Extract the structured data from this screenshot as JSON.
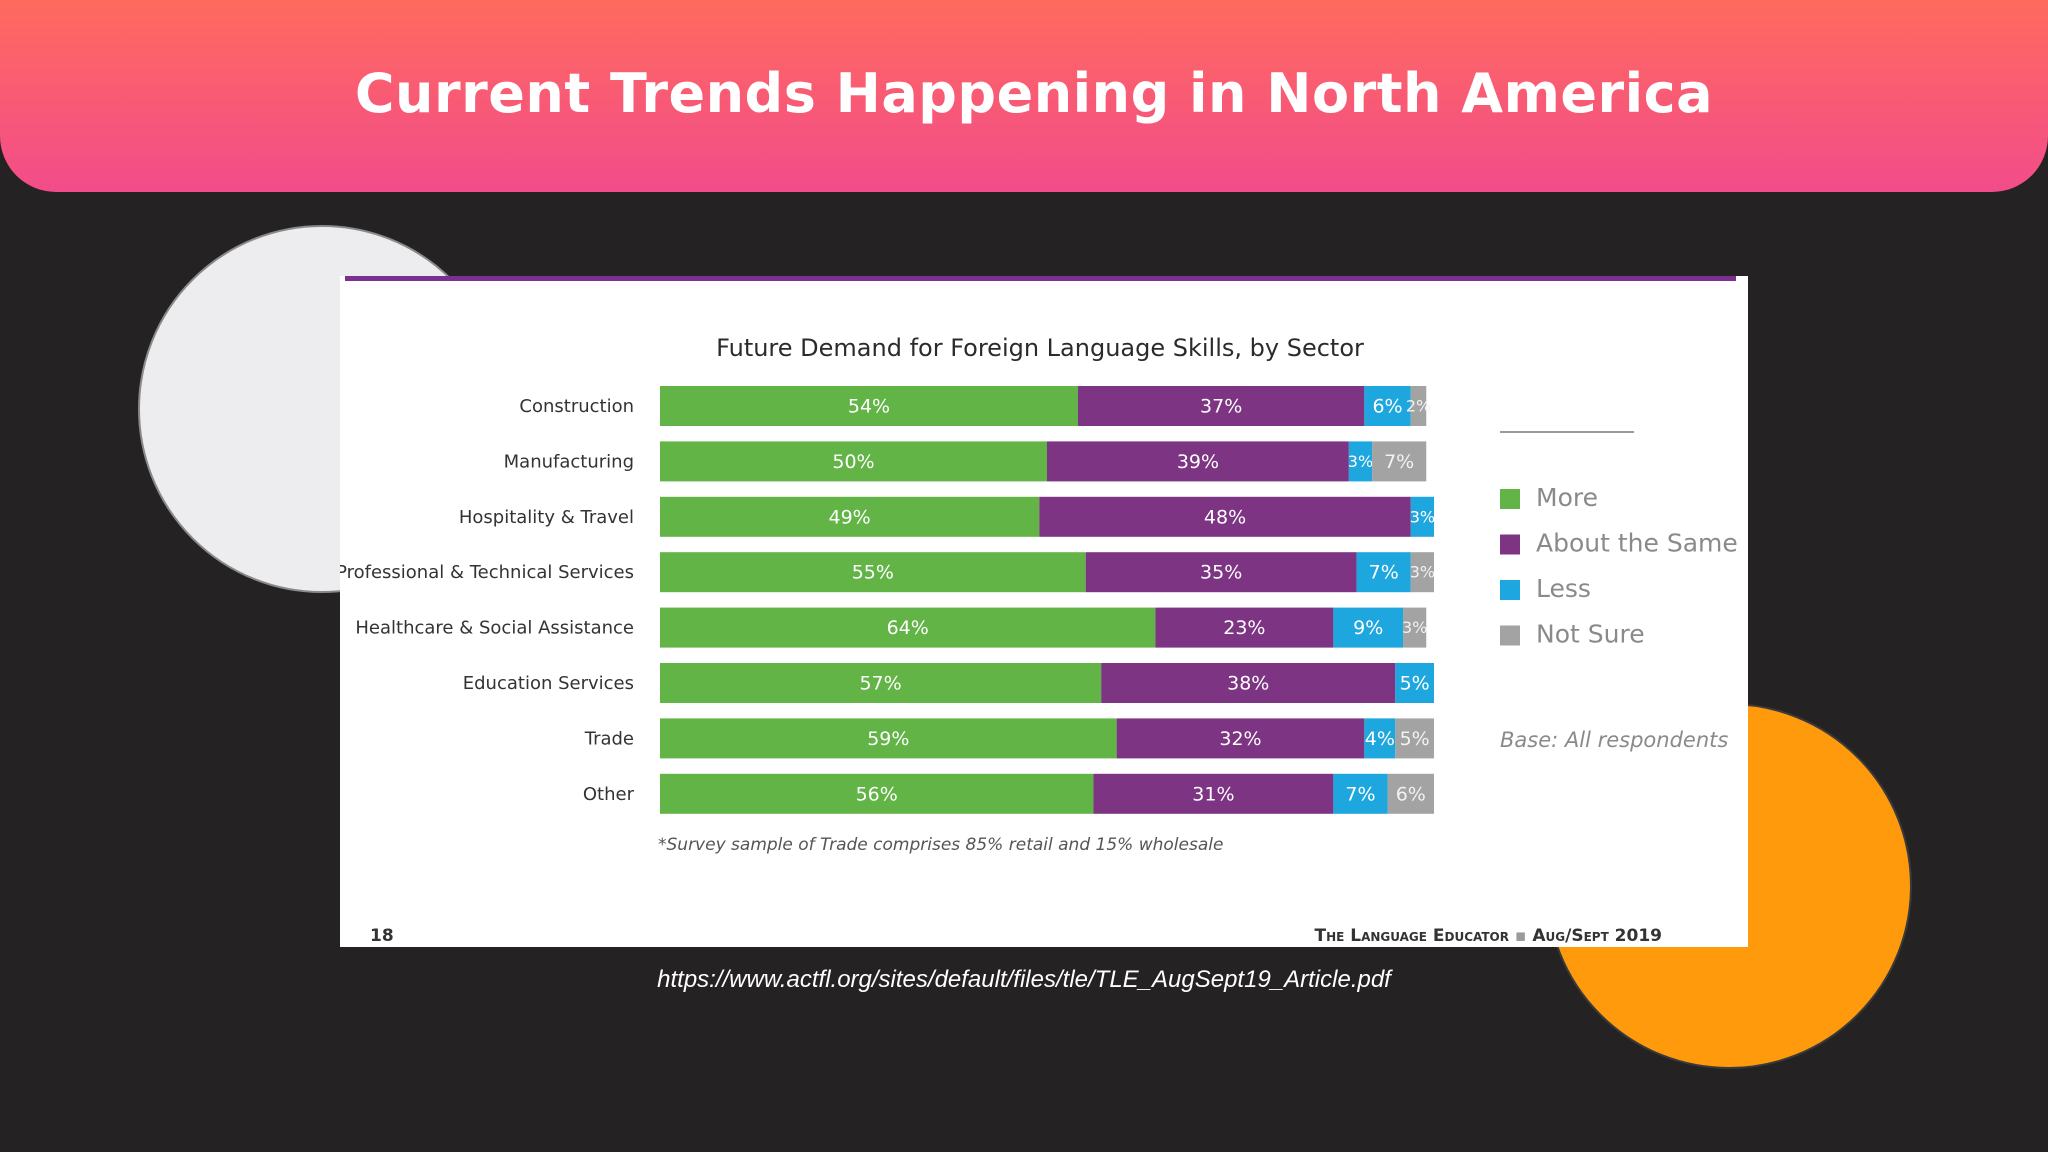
{
  "slide": {
    "title": "Current Trends Happening in North America",
    "source_url": "https://www.actfl.org/sites/default/files/tle/TLE_AugSept19_Article.pdf"
  },
  "figure": {
    "page_number": "18",
    "journal": "The Language Educator",
    "issue": "Aug/Sept 2019",
    "footnote": "*Survey sample of Trade comprises 85% retail and 15% wholesale",
    "base_note": "Base: All respondents"
  },
  "colors": {
    "more": "#62b446",
    "same": "#7c3483",
    "less": "#1ea6de",
    "not_sure": "#a3a3a3",
    "accent_line": "#7b2f8e"
  },
  "chart_data": {
    "type": "bar",
    "orientation": "horizontal",
    "stacked": true,
    "title": "Future Demand for Foreign Language Skills, by Sector",
    "categories": [
      "Construction",
      "Manufacturing",
      "Hospitality & Travel",
      "Professional & Technical Services",
      "Healthcare & Social Assistance",
      "Education Services",
      "Trade",
      "Other"
    ],
    "series": [
      {
        "name": "More",
        "color": "#62b446",
        "values": [
          54,
          50,
          49,
          55,
          64,
          57,
          59,
          56
        ]
      },
      {
        "name": "About the Same",
        "color": "#7c3483",
        "values": [
          37,
          39,
          48,
          35,
          23,
          38,
          32,
          31
        ]
      },
      {
        "name": "Less",
        "color": "#1ea6de",
        "values": [
          6,
          3,
          3,
          7,
          9,
          5,
          4,
          7
        ]
      },
      {
        "name": "Not Sure",
        "color": "#a3a3a3",
        "values": [
          2,
          7,
          0,
          3,
          3,
          0,
          5,
          6
        ]
      }
    ],
    "value_suffix": "%",
    "xlim": [
      0,
      100
    ],
    "legend": "right"
  }
}
